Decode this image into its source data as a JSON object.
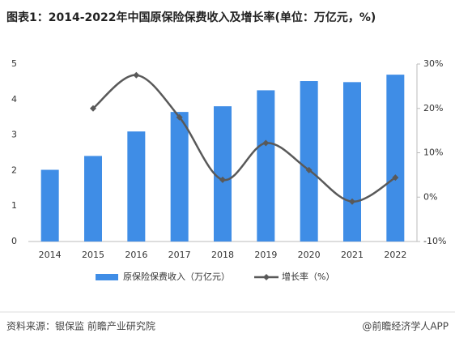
{
  "chart_data": {
    "type": "bar_line",
    "title": "图表1：2014-2022年中国原保险保费收入及增长率(单位：万亿元，%)",
    "categories": [
      "2014",
      "2015",
      "2016",
      "2017",
      "2018",
      "2019",
      "2020",
      "2021",
      "2022"
    ],
    "series": [
      {
        "name": "原保险保费收入（万亿元）",
        "type": "bar",
        "color": "#3f8de6",
        "values": [
          2.02,
          2.41,
          3.1,
          3.65,
          3.81,
          4.26,
          4.52,
          4.49,
          4.7
        ]
      },
      {
        "name": "增长率（%）",
        "type": "line",
        "axis": "y2",
        "color": "#595959",
        "values": [
          null,
          20.0,
          27.5,
          18.0,
          3.9,
          12.2,
          6.1,
          -1.0,
          4.4
        ]
      }
    ],
    "ylim": [
      0,
      5
    ],
    "yticks": [
      0,
      1,
      2,
      3,
      4,
      5
    ],
    "y2lim": [
      -10,
      30
    ],
    "y2ticks": [
      {
        "value": -10,
        "label": "-10%"
      },
      {
        "value": 0,
        "label": "0%"
      },
      {
        "value": 10,
        "label": "10%"
      },
      {
        "value": 20,
        "label": "20%"
      },
      {
        "value": 30,
        "label": "30%"
      }
    ],
    "legend": "bottom",
    "source": "资料来源：银保监 前瞻产业研究院",
    "brand": "@前瞻经济学人APP"
  }
}
